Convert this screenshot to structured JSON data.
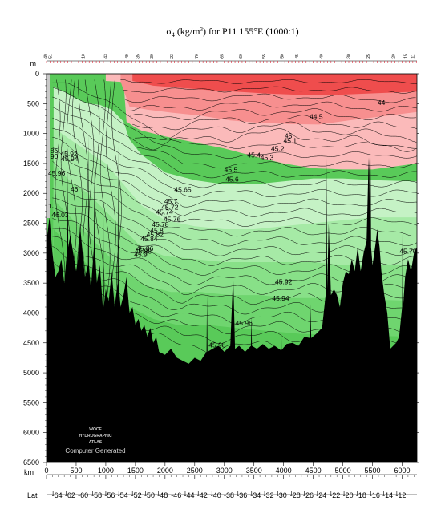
{
  "chart_data": {
    "type": "contour-section",
    "title": "σ4 (kg/m³) for P11 155°E (1000:1)",
    "title_parts": {
      "sym": "σ",
      "sub": "4",
      "mid": " (kg/m",
      "sup": "3",
      "tail": ") for P11 155°E (1000:1)"
    },
    "y_unit": "m",
    "x_unit": "km",
    "lat_label": "Lat",
    "ylim": [
      0,
      6500
    ],
    "xlim": [
      0,
      6250
    ],
    "y_ticks": [
      0,
      500,
      1000,
      1500,
      2000,
      2500,
      3000,
      3500,
      4000,
      4500,
      5000,
      5500,
      6000,
      6500
    ],
    "x_ticks": [
      0,
      500,
      1000,
      1500,
      2000,
      2500,
      3000,
      3500,
      4000,
      4500,
      5000,
      5500,
      6000
    ],
    "lat_ticks": [
      {
        "km": 110,
        "label": "-64"
      },
      {
        "km": 330,
        "label": "-62"
      },
      {
        "km": 550,
        "label": "-60"
      },
      {
        "km": 780,
        "label": "-58"
      },
      {
        "km": 1000,
        "label": "-56"
      },
      {
        "km": 1220,
        "label": "-54"
      },
      {
        "km": 1450,
        "label": "-52"
      },
      {
        "km": 1670,
        "label": "-50"
      },
      {
        "km": 1890,
        "label": "-48"
      },
      {
        "km": 2120,
        "label": "-46"
      },
      {
        "km": 2340,
        "label": "-44"
      },
      {
        "km": 2560,
        "label": "-42"
      },
      {
        "km": 2790,
        "label": "-40"
      },
      {
        "km": 3010,
        "label": "-38"
      },
      {
        "km": 3230,
        "label": "-36"
      },
      {
        "km": 3460,
        "label": "-34"
      },
      {
        "km": 3680,
        "label": "-32"
      },
      {
        "km": 3900,
        "label": "-30"
      },
      {
        "km": 4130,
        "label": "-28"
      },
      {
        "km": 4350,
        "label": "-26"
      },
      {
        "km": 4570,
        "label": "-24"
      },
      {
        "km": 4800,
        "label": "-22"
      },
      {
        "km": 5020,
        "label": "-20"
      },
      {
        "km": 5240,
        "label": "-18"
      },
      {
        "km": 5470,
        "label": "-16"
      },
      {
        "km": 5690,
        "label": "-14"
      },
      {
        "km": 5910,
        "label": "-12"
      }
    ],
    "station_labels": [
      {
        "km": 5,
        "label": "49"
      },
      {
        "km": 90,
        "label": "51"
      },
      {
        "km": 640,
        "label": "10"
      },
      {
        "km": 1020,
        "label": "43"
      },
      {
        "km": 1380,
        "label": "49"
      },
      {
        "km": 1560,
        "label": "35"
      },
      {
        "km": 1800,
        "label": "30"
      },
      {
        "km": 2140,
        "label": "23"
      },
      {
        "km": 2560,
        "label": "70"
      },
      {
        "km": 2980,
        "label": "65"
      },
      {
        "km": 3300,
        "label": "60"
      },
      {
        "km": 3690,
        "label": "55"
      },
      {
        "km": 4000,
        "label": "50"
      },
      {
        "km": 4250,
        "label": "45"
      },
      {
        "km": 4660,
        "label": "40"
      },
      {
        "km": 5120,
        "label": "30"
      },
      {
        "km": 5450,
        "label": "25"
      },
      {
        "km": 5880,
        "label": "20"
      },
      {
        "km": 6080,
        "label": "15"
      },
      {
        "km": 6200,
        "label": "11"
      }
    ],
    "fill_bands": [
      {
        "range": "< 44",
        "color": "#ef4d4d"
      },
      {
        "range": "44 – 45.1",
        "color": "#f78f8f"
      },
      {
        "range": "45.1 – 45.5",
        "color": "#fbbaba"
      },
      {
        "range": "45.5 – 45.7",
        "color": "#c5f2c5"
      },
      {
        "range": "45.7 – 45.84",
        "color": "#a6eaa6"
      },
      {
        "range": "45.84 – 45.92",
        "color": "#88e088"
      },
      {
        "range": "45.92 – 45.96",
        "color": "#6fd56f"
      },
      {
        "range": "> 45.96",
        "color": "#59ca59"
      }
    ],
    "contour_labels": [
      {
        "text": "44",
        "km": 5650,
        "depth": 520
      },
      {
        "text": "44.5",
        "km": 4550,
        "depth": 760
      },
      {
        "text": "45",
        "km": 4080,
        "depth": 1080
      },
      {
        "text": "45.1",
        "km": 4110,
        "depth": 1160
      },
      {
        "text": "45.2",
        "km": 3900,
        "depth": 1290
      },
      {
        "text": "45.4",
        "km": 3500,
        "depth": 1400
      },
      {
        "text": "45.3",
        "km": 3720,
        "depth": 1440
      },
      {
        "text": "45.5",
        "km": 3110,
        "depth": 1640
      },
      {
        "text": "45.6",
        "km": 3130,
        "depth": 1800
      },
      {
        "text": "45.65",
        "km": 2300,
        "depth": 1980
      },
      {
        "text": "45.7",
        "km": 2100,
        "depth": 2170
      },
      {
        "text": "45.72",
        "km": 2080,
        "depth": 2270
      },
      {
        "text": "45.74",
        "km": 1990,
        "depth": 2350
      },
      {
        "text": "45.76",
        "km": 2120,
        "depth": 2470
      },
      {
        "text": "45.78",
        "km": 1920,
        "depth": 2560
      },
      {
        "text": "45.8",
        "km": 1860,
        "depth": 2660
      },
      {
        "text": "45.82",
        "km": 1830,
        "depth": 2730
      },
      {
        "text": "45.84",
        "km": 1730,
        "depth": 2800
      },
      {
        "text": "45.86",
        "km": 1660,
        "depth": 2960
      },
      {
        "text": "45.88",
        "km": 1630,
        "depth": 3010
      },
      {
        "text": "45.9",
        "km": 1590,
        "depth": 3060
      },
      {
        "text": "45.92",
        "km": 4000,
        "depth": 3520
      },
      {
        "text": "45.94",
        "km": 3950,
        "depth": 3790
      },
      {
        "text": "45.96",
        "km": 3330,
        "depth": 4210
      },
      {
        "text": "45.98",
        "km": 2880,
        "depth": 4580
      },
      {
        "text": "45.92",
        "km": 380,
        "depth": 1380
      },
      {
        "text": "45.94",
        "km": 390,
        "depth": 1460
      },
      {
        "text": "45.96",
        "km": 170,
        "depth": 1700
      },
      {
        "text": "46",
        "km": 470,
        "depth": 1970
      },
      {
        "text": "46.03",
        "km": 230,
        "depth": 2400
      },
      {
        "text": "45.76",
        "km": 6100,
        "depth": 3010
      }
    ],
    "left_edge_labels": [
      {
        "text": "85",
        "km": 130,
        "depth": 1330
      },
      {
        "text": "90",
        "km": 130,
        "depth": 1420
      },
      {
        "text": "1",
        "km": 60,
        "depth": 2250
      }
    ],
    "watermark": [
      "WOCE",
      "HYDROGRAPHIC",
      "ATLAS"
    ],
    "credit": "Computer Generated"
  }
}
